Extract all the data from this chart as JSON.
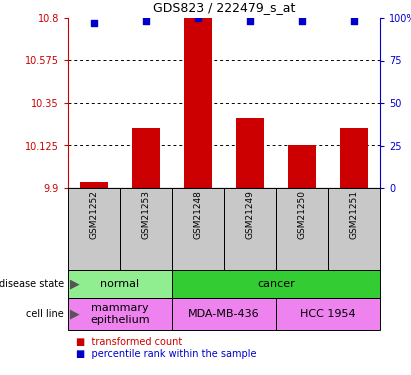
{
  "title": "GDS823 / 222479_s_at",
  "samples": [
    "GSM21252",
    "GSM21253",
    "GSM21248",
    "GSM21249",
    "GSM21250",
    "GSM21251"
  ],
  "bar_values": [
    9.93,
    10.22,
    10.8,
    10.27,
    10.13,
    10.22
  ],
  "percentile_values": [
    97,
    98,
    100,
    98,
    98,
    98
  ],
  "y_min": 9.9,
  "y_max": 10.8,
  "y_ticks": [
    9.9,
    10.125,
    10.35,
    10.575,
    10.8
  ],
  "y_tick_labels": [
    "9.9",
    "10.125",
    "10.35",
    "10.575",
    "10.8"
  ],
  "y2_ticks": [
    0,
    25,
    50,
    75,
    100
  ],
  "y2_tick_labels": [
    "0",
    "25",
    "50",
    "75",
    "100%"
  ],
  "bar_color": "#cc0000",
  "dot_color": "#0000cc",
  "left_tick_color": "#cc0000",
  "right_tick_color": "#0000cc",
  "disease_state_groups": [
    {
      "label": "normal",
      "start": 0,
      "end": 2,
      "color": "#90ee90"
    },
    {
      "label": "cancer",
      "start": 2,
      "end": 6,
      "color": "#33cc33"
    }
  ],
  "cell_line_groups": [
    {
      "label": "mammary\nepithelium",
      "start": 0,
      "end": 2,
      "color": "#ee82ee"
    },
    {
      "label": "MDA-MB-436",
      "start": 2,
      "end": 4,
      "color": "#ee82ee"
    },
    {
      "label": "HCC 1954",
      "start": 4,
      "end": 6,
      "color": "#ee82ee"
    }
  ],
  "bg_color": "#ffffff",
  "sample_box_color": "#c8c8c8",
  "fig_width": 4.11,
  "fig_height": 3.75,
  "dpi": 100
}
